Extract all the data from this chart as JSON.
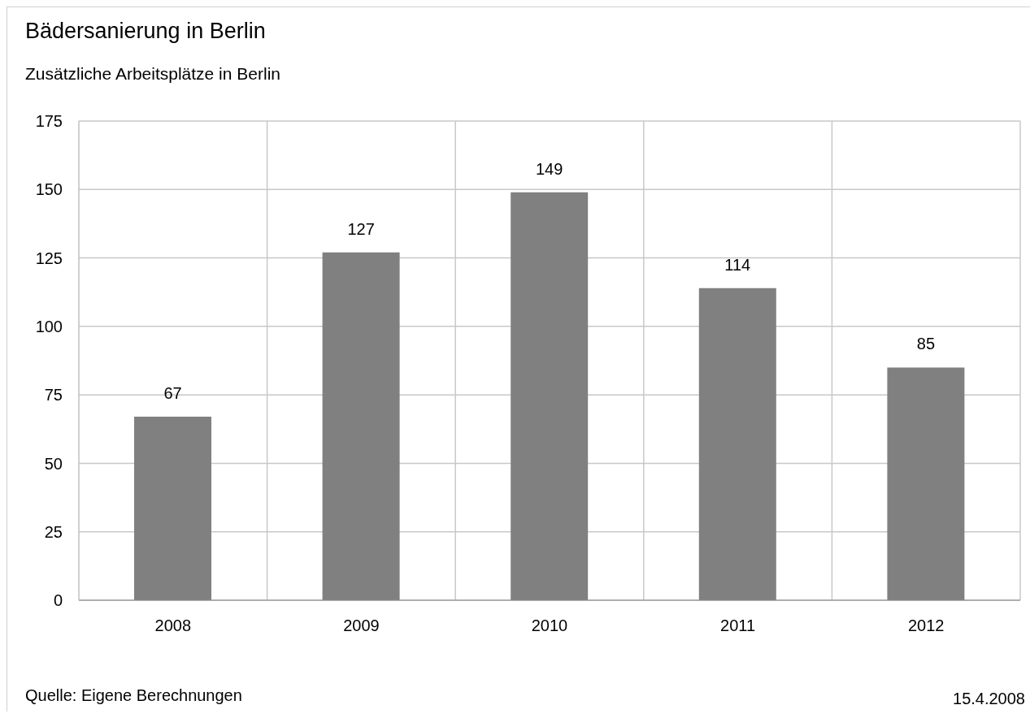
{
  "chart_data": {
    "type": "bar",
    "title": "Bädersanierung in Berlin",
    "subtitle": "Zusätzliche Arbeitsplätze in Berlin",
    "categories": [
      "2008",
      "2009",
      "2010",
      "2011",
      "2012"
    ],
    "values": [
      67,
      127,
      149,
      114,
      85
    ],
    "color": "#808080",
    "ylim": [
      0,
      175
    ],
    "yticks": [
      0,
      25,
      50,
      75,
      100,
      125,
      150,
      175
    ],
    "grid": true,
    "data_labels": true,
    "annotations": [
      "Quelle: Eigene Berechnungen",
      "15.4.2008"
    ]
  }
}
